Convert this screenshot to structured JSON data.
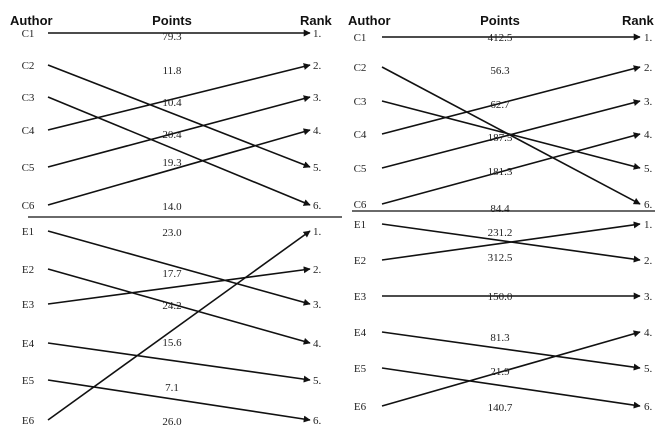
{
  "headers": {
    "author": "Author",
    "points": "Points",
    "rank": "Rank"
  },
  "panels": [
    {
      "rows_c": [
        {
          "author": "C1",
          "points": "79.3",
          "rank": "1.",
          "to": 0
        },
        {
          "author": "C2",
          "points": "11.8",
          "rank": "2.",
          "to": 4
        },
        {
          "author": "C3",
          "points": "10.4",
          "rank": "3.",
          "to": 5
        },
        {
          "author": "C4",
          "points": "20.4",
          "rank": "4.",
          "to": 1
        },
        {
          "author": "C5",
          "points": "19.3",
          "rank": "5.",
          "to": 2
        },
        {
          "author": "C6",
          "points": "14.0",
          "rank": "6.",
          "to": 3
        }
      ],
      "rows_e": [
        {
          "author": "E1",
          "points": "23.0",
          "rank": "1.",
          "to": 2
        },
        {
          "author": "E2",
          "points": "17.7",
          "rank": "2.",
          "to": 3
        },
        {
          "author": "E3",
          "points": "24.2",
          "rank": "3.",
          "to": 1
        },
        {
          "author": "E4",
          "points": "15.6",
          "rank": "4.",
          "to": 4
        },
        {
          "author": "E5",
          "points": "7.1",
          "rank": "5.",
          "to": 5
        },
        {
          "author": "E6",
          "points": "26.0",
          "rank": "6.",
          "to": 0
        }
      ]
    },
    {
      "rows_c": [
        {
          "author": "C1",
          "points": "412.5",
          "rank": "1.",
          "to": 0
        },
        {
          "author": "C2",
          "points": "56.3",
          "rank": "2.",
          "to": 5
        },
        {
          "author": "C3",
          "points": "62.7",
          "rank": "3.",
          "to": 4
        },
        {
          "author": "C4",
          "points": "187.5",
          "rank": "4.",
          "to": 1
        },
        {
          "author": "C5",
          "points": "181.3",
          "rank": "5.",
          "to": 2
        },
        {
          "author": "C6",
          "points": "84.4",
          "rank": "6.",
          "to": 3
        }
      ],
      "rows_e": [
        {
          "author": "E1",
          "points": "231.2",
          "rank": "1.",
          "to": 1
        },
        {
          "author": "E2",
          "points": "312.5",
          "rank": "2.",
          "to": 0
        },
        {
          "author": "E3",
          "points": "150.0",
          "rank": "3.",
          "to": 2
        },
        {
          "author": "E4",
          "points": "81.3",
          "rank": "4.",
          "to": 4
        },
        {
          "author": "E5",
          "points": "21.9",
          "rank": "5.",
          "to": 5
        },
        {
          "author": "E6",
          "points": "140.7",
          "rank": "6.",
          "to": 3
        }
      ]
    }
  ]
}
